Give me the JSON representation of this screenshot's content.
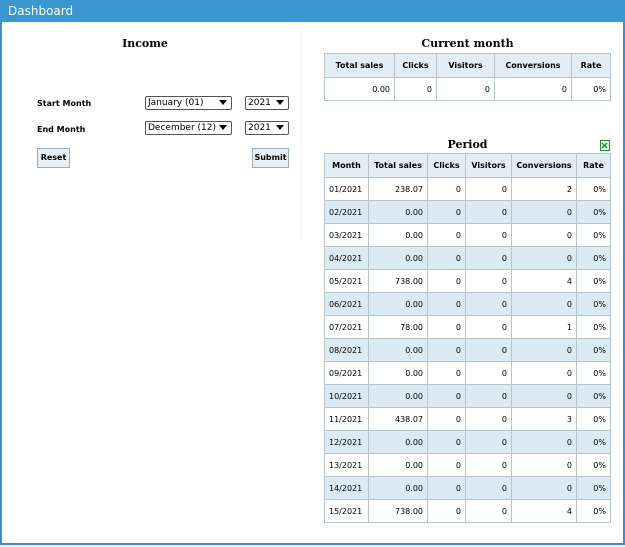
{
  "header": {
    "title": "Dashboard"
  },
  "income": {
    "title": "Income",
    "start_label": "Start Month",
    "start_month": "January (01)",
    "start_year": "2021",
    "end_label": "End Month",
    "end_month": "December (12)",
    "end_year": "2021",
    "reset": "Reset",
    "submit": "Submit"
  },
  "current_month": {
    "title": "Current month",
    "columns": [
      "Total sales",
      "Clicks",
      "Visitors",
      "Conversions",
      "Rate"
    ],
    "rows": [
      [
        "0.00",
        "0",
        "0",
        "0",
        "0%"
      ]
    ]
  },
  "period": {
    "title": "Period",
    "columns": [
      "Month",
      "Total sales",
      "Clicks",
      "Visitors",
      "Conversions",
      "Rate"
    ],
    "rows": [
      [
        "01/2021",
        "238.07",
        "0",
        "0",
        "2",
        "0%"
      ],
      [
        "02/2021",
        "0.00",
        "0",
        "0",
        "0",
        "0%"
      ],
      [
        "03/2021",
        "0.00",
        "0",
        "0",
        "0",
        "0%"
      ],
      [
        "04/2021",
        "0.00",
        "0",
        "0",
        "0",
        "0%"
      ],
      [
        "05/2021",
        "738.00",
        "0",
        "0",
        "4",
        "0%"
      ],
      [
        "06/2021",
        "0.00",
        "0",
        "0",
        "0",
        "0%"
      ],
      [
        "07/2021",
        "78.00",
        "0",
        "0",
        "1",
        "0%"
      ],
      [
        "08/2021",
        "0.00",
        "0",
        "0",
        "0",
        "0%"
      ],
      [
        "09/2021",
        "0.00",
        "0",
        "0",
        "0",
        "0%"
      ],
      [
        "10/2021",
        "0.00",
        "0",
        "0",
        "0",
        "0%"
      ],
      [
        "11/2021",
        "438.07",
        "0",
        "0",
        "3",
        "0%"
      ],
      [
        "12/2021",
        "0.00",
        "0",
        "0",
        "0",
        "0%"
      ],
      [
        "13/2021",
        "0.00",
        "0",
        "0",
        "0",
        "0%"
      ],
      [
        "14/2021",
        "0.00",
        "0",
        "0",
        "0",
        "0%"
      ],
      [
        "15/2021",
        "738.00",
        "0",
        "0",
        "4",
        "0%"
      ]
    ]
  }
}
